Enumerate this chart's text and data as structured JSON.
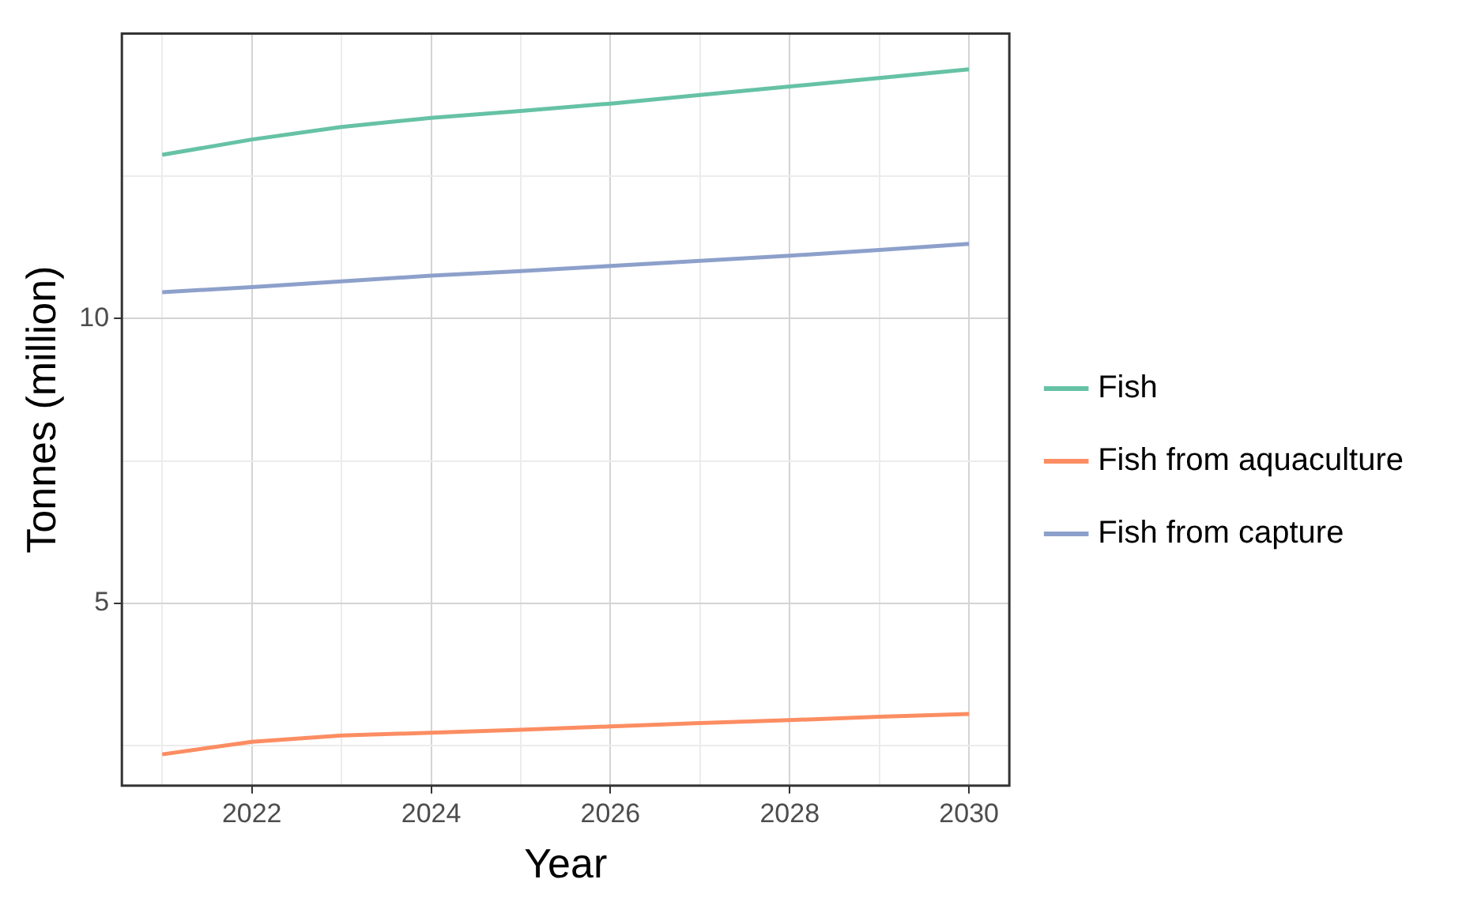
{
  "chart_data": {
    "type": "line",
    "xlabel": "Year",
    "ylabel": "Tonnes (million)",
    "x": [
      2021,
      2022,
      2023,
      2024,
      2025,
      2026,
      2027,
      2028,
      2029,
      2030
    ],
    "series": [
      {
        "name": "Fish",
        "color": "#66c2a5",
        "values": [
          12.87,
          13.14,
          13.36,
          13.52,
          13.64,
          13.77,
          13.92,
          14.07,
          14.22,
          14.37
        ]
      },
      {
        "name": "Fish from aquaculture",
        "color": "#fc8d62",
        "values": [
          2.35,
          2.57,
          2.68,
          2.73,
          2.78,
          2.84,
          2.9,
          2.95,
          3.01,
          3.06
        ]
      },
      {
        "name": "Fish from capture",
        "color": "#8da0cb",
        "values": [
          10.46,
          10.55,
          10.65,
          10.75,
          10.83,
          10.92,
          11.01,
          11.1,
          11.2,
          11.31
        ]
      }
    ],
    "xlim": [
      2020.55,
      2030.45
    ],
    "ylim": [
      1.8,
      15
    ],
    "xticks": [
      {
        "value": 2021,
        "label": null
      },
      2022,
      {
        "value": 2023,
        "label": null
      },
      2024,
      {
        "value": 2025,
        "label": null
      },
      2026,
      {
        "value": 2027,
        "label": null
      },
      2028,
      {
        "value": 2029,
        "label": null
      },
      2030
    ],
    "yticks": [
      {
        "value": 2.5,
        "label": null
      },
      5,
      {
        "value": 7.5,
        "label": null
      },
      10,
      {
        "value": 12.5,
        "label": null
      }
    ],
    "grid": true,
    "legend": "right",
    "marker": "none",
    "line_style": "solid"
  }
}
